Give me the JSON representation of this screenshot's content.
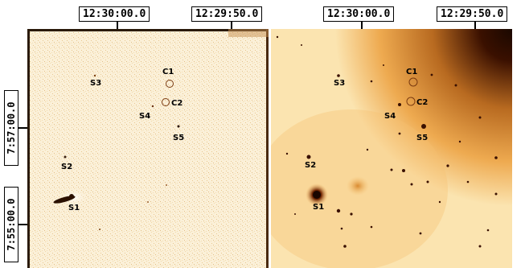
{
  "ra_axis": [
    "12:30:00.0",
    "12:29:50.0"
  ],
  "dec_axis": [
    "7:57:00.0",
    "7:55:00.0"
  ],
  "panels": [
    {
      "name": "left",
      "labels": {
        "C1": "C1",
        "C2": "C2",
        "S1": "S1",
        "S2": "S2",
        "S3": "S3",
        "S4": "S4",
        "S5": "S5"
      }
    },
    {
      "name": "right",
      "labels": {
        "C1": "C1",
        "C2": "C2",
        "S1": "S1",
        "S2": "S2",
        "S3": "S3",
        "S4": "S4",
        "S5": "S5"
      }
    }
  ],
  "colors": {
    "left_bg": "#fbf0d8",
    "right_bg_light": "#fbe4b0",
    "right_bg_mid": "#e8a040",
    "right_bg_dark": "#1a0800",
    "marker": "#7a3a10",
    "source": "#2a1000"
  }
}
